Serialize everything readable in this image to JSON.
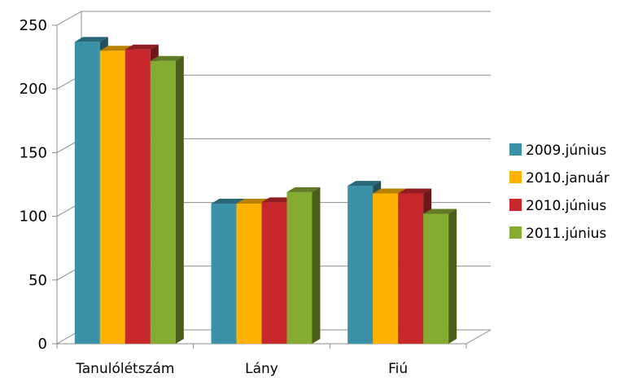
{
  "chart_data": {
    "type": "bar",
    "title": "",
    "xlabel": "",
    "ylabel": "",
    "categories": [
      "Tanulólétszám",
      "Lány",
      "Fiú"
    ],
    "series": [
      {
        "name": "2009.június",
        "color": "#3a91a8",
        "values": [
          237,
          110,
          124
        ]
      },
      {
        "name": "2010.január",
        "color": "#ffb300",
        "values": [
          230,
          110,
          118
        ]
      },
      {
        "name": "2010.június",
        "color": "#c8282c",
        "values": [
          231,
          111,
          118
        ]
      },
      {
        "name": "2011.június",
        "color": "#86ab32",
        "values": [
          222,
          119,
          102
        ]
      }
    ],
    "ylim": [
      0,
      250
    ],
    "yticks": [
      0,
      50,
      100,
      150,
      200,
      250
    ],
    "grid": true,
    "legend": "right"
  }
}
